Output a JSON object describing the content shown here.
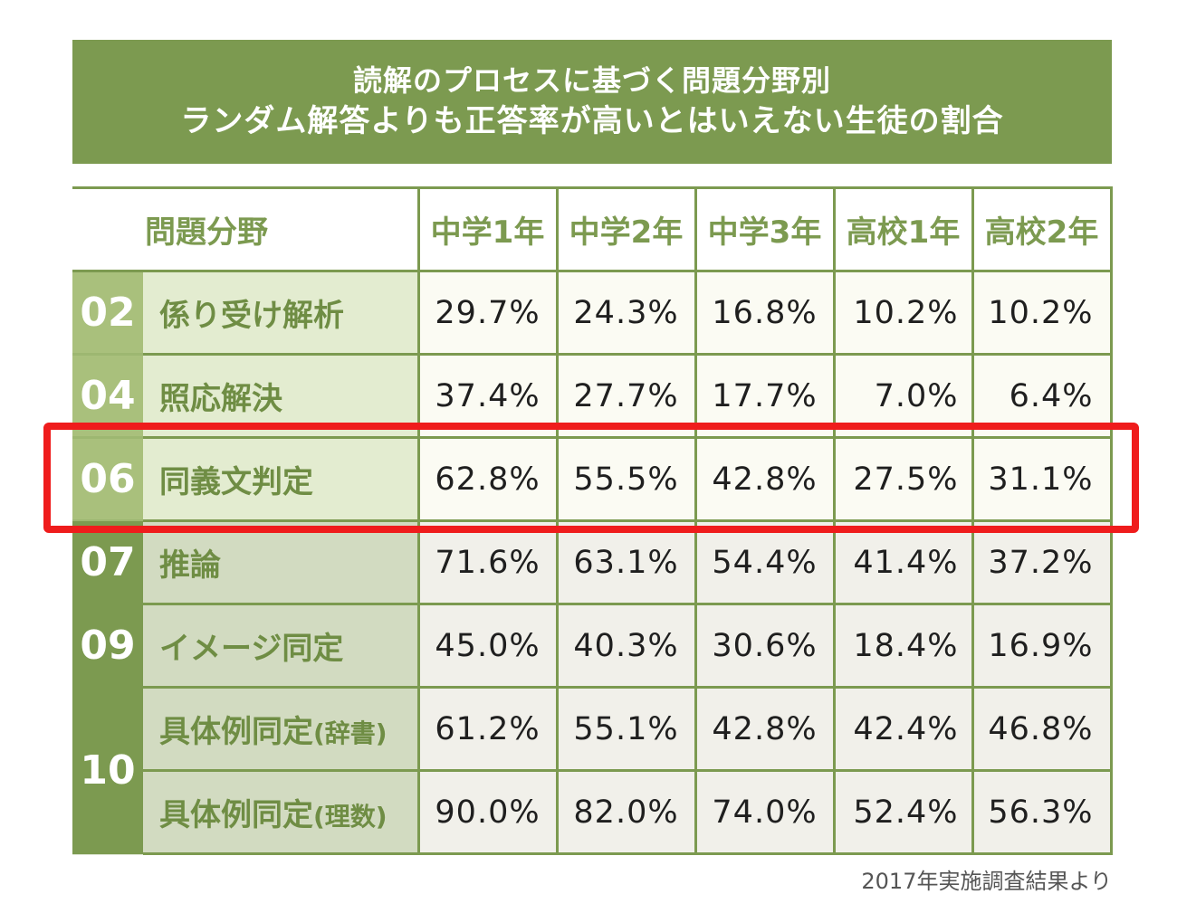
{
  "title": {
    "line1": "読解のプロセスに基づく問題分野別",
    "line2": "ランダム解答よりも正答率が高いとはいえない生徒の割合"
  },
  "chart_data": {
    "type": "table",
    "columns": [
      "問題分野",
      "中学1年",
      "中学2年",
      "中学3年",
      "高校1年",
      "高校2年"
    ],
    "rows": [
      {
        "num": "02",
        "field": "係り受け解析",
        "values": [
          "29.7%",
          "24.3%",
          "16.8%",
          "10.2%",
          "10.2%"
        ]
      },
      {
        "num": "04",
        "field": "照応解決",
        "values": [
          "37.4%",
          "27.7%",
          "17.7%",
          "7.0%",
          "6.4%"
        ]
      },
      {
        "num": "06",
        "field": "同義文判定",
        "values": [
          "62.8%",
          "55.5%",
          "42.8%",
          "27.5%",
          "31.1%"
        ]
      },
      {
        "num": "07",
        "field": "推論",
        "values": [
          "71.6%",
          "63.1%",
          "54.4%",
          "41.4%",
          "37.2%"
        ]
      },
      {
        "num": "09",
        "field": "イメージ同定",
        "values": [
          "45.0%",
          "40.3%",
          "30.6%",
          "18.4%",
          "16.9%"
        ]
      },
      {
        "num": "10",
        "field": "具体例同定",
        "field_note": "(辞書)",
        "values": [
          "61.2%",
          "55.1%",
          "42.8%",
          "42.4%",
          "46.8%"
        ]
      },
      {
        "num": "10",
        "field": "具体例同定",
        "field_note": "(理数)",
        "values": [
          "90.0%",
          "82.0%",
          "74.0%",
          "52.4%",
          "56.3%"
        ]
      }
    ],
    "highlighted_row": "06"
  },
  "source_note": "2017年実施調査結果より",
  "colors": {
    "accent": "#7c9a50",
    "highlight": "#ef1c1c"
  }
}
